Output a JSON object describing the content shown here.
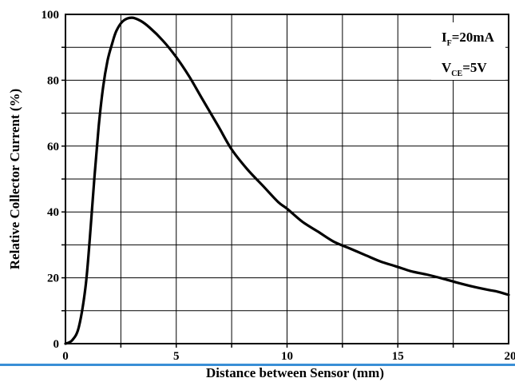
{
  "chart_data": {
    "type": "line",
    "xlabel": "Distance between Sensor (mm)",
    "ylabel": "Relative Collector Current (%)",
    "xlim": [
      0,
      20
    ],
    "ylim": [
      0,
      100
    ],
    "x_ticks": [
      0,
      5,
      10,
      15,
      20
    ],
    "y_ticks": [
      0,
      20,
      40,
      60,
      80,
      100
    ],
    "grid": true,
    "annotations": [
      {
        "main": "I",
        "sub": "F",
        "rest": "=20mA"
      },
      {
        "main": "V",
        "sub": "CE",
        "rest": "=5V"
      }
    ],
    "series": [
      {
        "x": [
          0,
          0.3,
          0.6,
          0.9,
          1.1,
          1.3,
          1.5,
          1.7,
          1.9,
          2.1,
          2.3,
          2.6,
          3.0,
          3.4,
          3.8,
          4.4,
          5.0,
          5.6,
          6.2,
          6.9,
          7.5,
          8.2,
          8.9,
          9.6,
          10.0,
          10.7,
          11.4,
          12.1,
          12.8,
          13.5,
          14.2,
          14.9,
          15.6,
          16.3,
          17.0,
          17.7,
          18.4,
          19.1,
          19.5,
          20.0
        ],
        "y": [
          0,
          1,
          5,
          17,
          32,
          50,
          66,
          78,
          86,
          91,
          95,
          98,
          99,
          98,
          96,
          92,
          87,
          81,
          74,
          66,
          59,
          53,
          48,
          43,
          41,
          37,
          34,
          31,
          29,
          27,
          25,
          23.5,
          22,
          21,
          19.8,
          18.5,
          17.3,
          16.3,
          15.8,
          14.8
        ]
      }
    ]
  }
}
